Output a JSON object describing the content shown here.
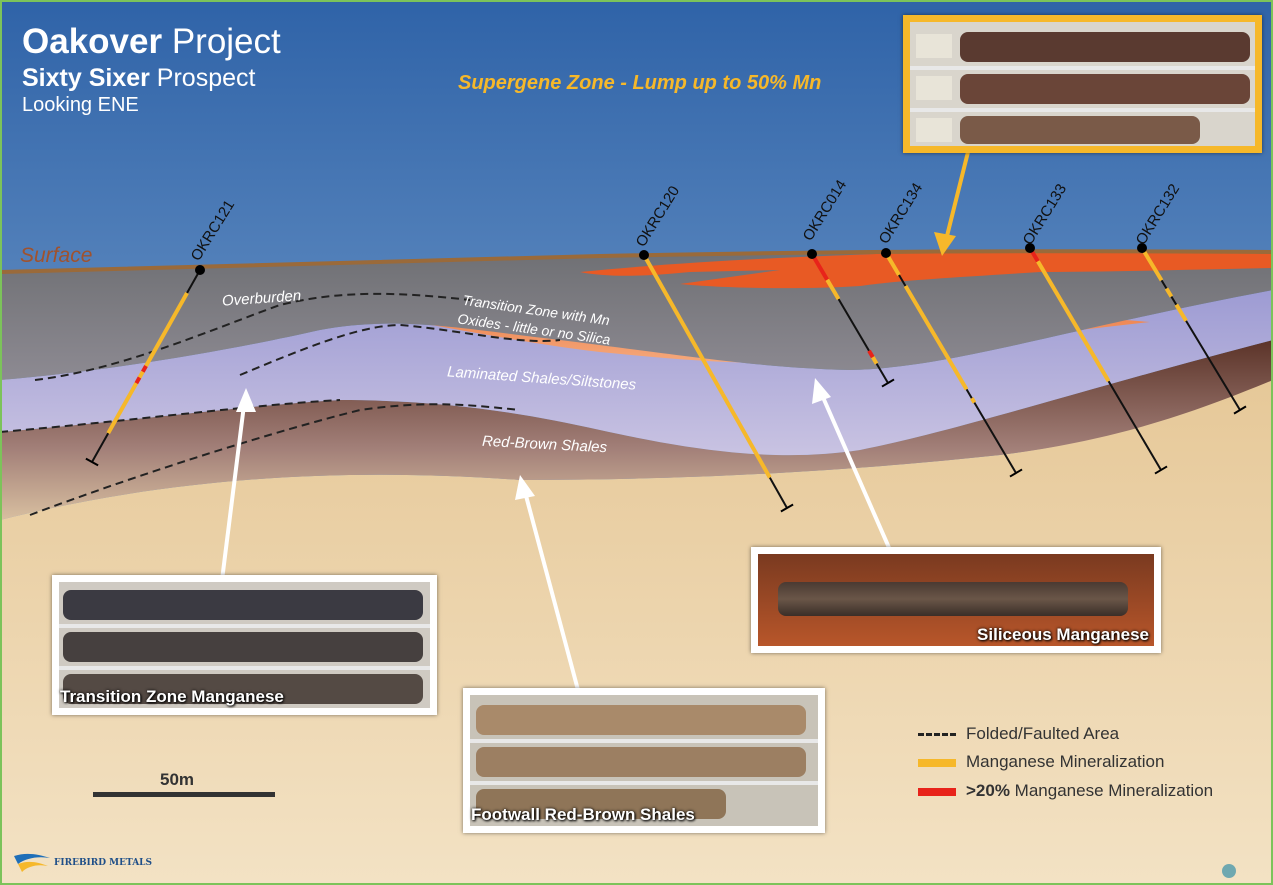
{
  "title": {
    "project_bold": "Oakover",
    "project_rest": " Project",
    "prospect_bold": "Sixty Sixer",
    "prospect_rest": " Prospect",
    "view": "Looking ENE"
  },
  "supergene_label": "Supergene Zone - Lump up to 50% Mn",
  "surface_label": "Surface",
  "layers": {
    "overburden": "Overburden",
    "transition_line1": "Transition Zone with Mn",
    "transition_line2": "Oxides - little or no Silica",
    "laminated": "Laminated Shales/Siltstones",
    "redbrown": "Red-Brown Shales"
  },
  "drillholes": [
    "OKRC121",
    "OKRC120",
    "OKRC014",
    "OKRC134",
    "OKRC133",
    "OKRC132"
  ],
  "photos": {
    "transition": "Transition Zone Manganese",
    "footwall": "Footwall Red-Brown Shales",
    "siliceous": "Siliceous Manganese"
  },
  "legend": {
    "faulted": "Folded/Faulted Area",
    "mineral": "Manganese Mineralization",
    "high_bold": ">20%",
    "high_rest": " Manganese Mineralization"
  },
  "scale_label": "50m",
  "logo_text": "FIREBIRD METALS",
  "colors": {
    "sky_top": "#3a6fb0",
    "overburden": "#7a7a7e",
    "transition": "#ef7a3a",
    "laminated": "#a9a6d8",
    "redbrown": "#6b4034",
    "sand": "#ecd4aa",
    "mineral": "#f6b82a",
    "high_grade": "#e8231a"
  }
}
